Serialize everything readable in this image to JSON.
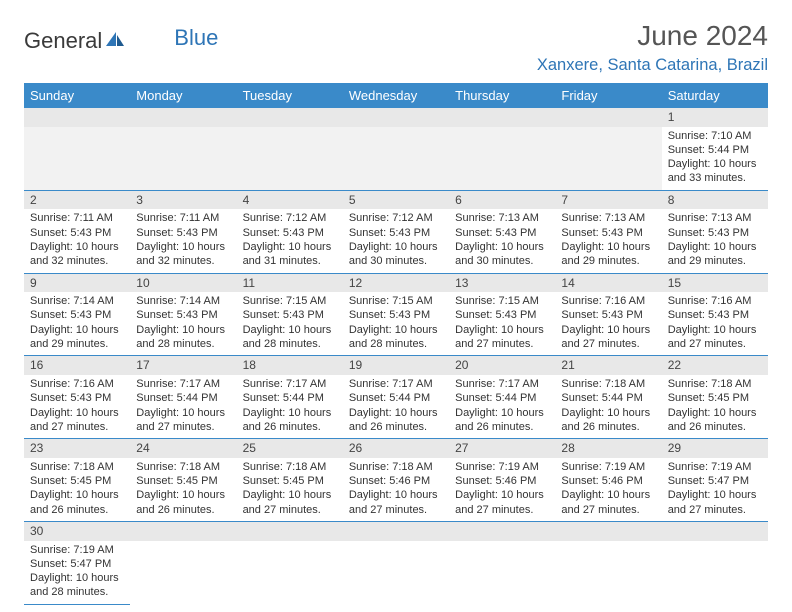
{
  "logo": {
    "text1": "General",
    "text2": "Blue"
  },
  "title": "June 2024",
  "location": "Xanxere, Santa Catarina, Brazil",
  "colors": {
    "header_bg": "#3a8ac9",
    "header_text": "#ffffff",
    "accent": "#2e75b6",
    "daynum_bg": "#e8e8e8",
    "border": "#3a8ac9"
  },
  "dayHeaders": [
    "Sunday",
    "Monday",
    "Tuesday",
    "Wednesday",
    "Thursday",
    "Friday",
    "Saturday"
  ],
  "weeks": [
    [
      null,
      null,
      null,
      null,
      null,
      null,
      {
        "num": "1",
        "sunrise": "Sunrise: 7:10 AM",
        "sunset": "Sunset: 5:44 PM",
        "daylight": "Daylight: 10 hours and 33 minutes."
      }
    ],
    [
      {
        "num": "2",
        "sunrise": "Sunrise: 7:11 AM",
        "sunset": "Sunset: 5:43 PM",
        "daylight": "Daylight: 10 hours and 32 minutes."
      },
      {
        "num": "3",
        "sunrise": "Sunrise: 7:11 AM",
        "sunset": "Sunset: 5:43 PM",
        "daylight": "Daylight: 10 hours and 32 minutes."
      },
      {
        "num": "4",
        "sunrise": "Sunrise: 7:12 AM",
        "sunset": "Sunset: 5:43 PM",
        "daylight": "Daylight: 10 hours and 31 minutes."
      },
      {
        "num": "5",
        "sunrise": "Sunrise: 7:12 AM",
        "sunset": "Sunset: 5:43 PM",
        "daylight": "Daylight: 10 hours and 30 minutes."
      },
      {
        "num": "6",
        "sunrise": "Sunrise: 7:13 AM",
        "sunset": "Sunset: 5:43 PM",
        "daylight": "Daylight: 10 hours and 30 minutes."
      },
      {
        "num": "7",
        "sunrise": "Sunrise: 7:13 AM",
        "sunset": "Sunset: 5:43 PM",
        "daylight": "Daylight: 10 hours and 29 minutes."
      },
      {
        "num": "8",
        "sunrise": "Sunrise: 7:13 AM",
        "sunset": "Sunset: 5:43 PM",
        "daylight": "Daylight: 10 hours and 29 minutes."
      }
    ],
    [
      {
        "num": "9",
        "sunrise": "Sunrise: 7:14 AM",
        "sunset": "Sunset: 5:43 PM",
        "daylight": "Daylight: 10 hours and 29 minutes."
      },
      {
        "num": "10",
        "sunrise": "Sunrise: 7:14 AM",
        "sunset": "Sunset: 5:43 PM",
        "daylight": "Daylight: 10 hours and 28 minutes."
      },
      {
        "num": "11",
        "sunrise": "Sunrise: 7:15 AM",
        "sunset": "Sunset: 5:43 PM",
        "daylight": "Daylight: 10 hours and 28 minutes."
      },
      {
        "num": "12",
        "sunrise": "Sunrise: 7:15 AM",
        "sunset": "Sunset: 5:43 PM",
        "daylight": "Daylight: 10 hours and 28 minutes."
      },
      {
        "num": "13",
        "sunrise": "Sunrise: 7:15 AM",
        "sunset": "Sunset: 5:43 PM",
        "daylight": "Daylight: 10 hours and 27 minutes."
      },
      {
        "num": "14",
        "sunrise": "Sunrise: 7:16 AM",
        "sunset": "Sunset: 5:43 PM",
        "daylight": "Daylight: 10 hours and 27 minutes."
      },
      {
        "num": "15",
        "sunrise": "Sunrise: 7:16 AM",
        "sunset": "Sunset: 5:43 PM",
        "daylight": "Daylight: 10 hours and 27 minutes."
      }
    ],
    [
      {
        "num": "16",
        "sunrise": "Sunrise: 7:16 AM",
        "sunset": "Sunset: 5:43 PM",
        "daylight": "Daylight: 10 hours and 27 minutes."
      },
      {
        "num": "17",
        "sunrise": "Sunrise: 7:17 AM",
        "sunset": "Sunset: 5:44 PM",
        "daylight": "Daylight: 10 hours and 27 minutes."
      },
      {
        "num": "18",
        "sunrise": "Sunrise: 7:17 AM",
        "sunset": "Sunset: 5:44 PM",
        "daylight": "Daylight: 10 hours and 26 minutes."
      },
      {
        "num": "19",
        "sunrise": "Sunrise: 7:17 AM",
        "sunset": "Sunset: 5:44 PM",
        "daylight": "Daylight: 10 hours and 26 minutes."
      },
      {
        "num": "20",
        "sunrise": "Sunrise: 7:17 AM",
        "sunset": "Sunset: 5:44 PM",
        "daylight": "Daylight: 10 hours and 26 minutes."
      },
      {
        "num": "21",
        "sunrise": "Sunrise: 7:18 AM",
        "sunset": "Sunset: 5:44 PM",
        "daylight": "Daylight: 10 hours and 26 minutes."
      },
      {
        "num": "22",
        "sunrise": "Sunrise: 7:18 AM",
        "sunset": "Sunset: 5:45 PM",
        "daylight": "Daylight: 10 hours and 26 minutes."
      }
    ],
    [
      {
        "num": "23",
        "sunrise": "Sunrise: 7:18 AM",
        "sunset": "Sunset: 5:45 PM",
        "daylight": "Daylight: 10 hours and 26 minutes."
      },
      {
        "num": "24",
        "sunrise": "Sunrise: 7:18 AM",
        "sunset": "Sunset: 5:45 PM",
        "daylight": "Daylight: 10 hours and 26 minutes."
      },
      {
        "num": "25",
        "sunrise": "Sunrise: 7:18 AM",
        "sunset": "Sunset: 5:45 PM",
        "daylight": "Daylight: 10 hours and 27 minutes."
      },
      {
        "num": "26",
        "sunrise": "Sunrise: 7:18 AM",
        "sunset": "Sunset: 5:46 PM",
        "daylight": "Daylight: 10 hours and 27 minutes."
      },
      {
        "num": "27",
        "sunrise": "Sunrise: 7:19 AM",
        "sunset": "Sunset: 5:46 PM",
        "daylight": "Daylight: 10 hours and 27 minutes."
      },
      {
        "num": "28",
        "sunrise": "Sunrise: 7:19 AM",
        "sunset": "Sunset: 5:46 PM",
        "daylight": "Daylight: 10 hours and 27 minutes."
      },
      {
        "num": "29",
        "sunrise": "Sunrise: 7:19 AM",
        "sunset": "Sunset: 5:47 PM",
        "daylight": "Daylight: 10 hours and 27 minutes."
      }
    ],
    [
      {
        "num": "30",
        "sunrise": "Sunrise: 7:19 AM",
        "sunset": "Sunset: 5:47 PM",
        "daylight": "Daylight: 10 hours and 28 minutes."
      },
      null,
      null,
      null,
      null,
      null,
      null
    ]
  ]
}
